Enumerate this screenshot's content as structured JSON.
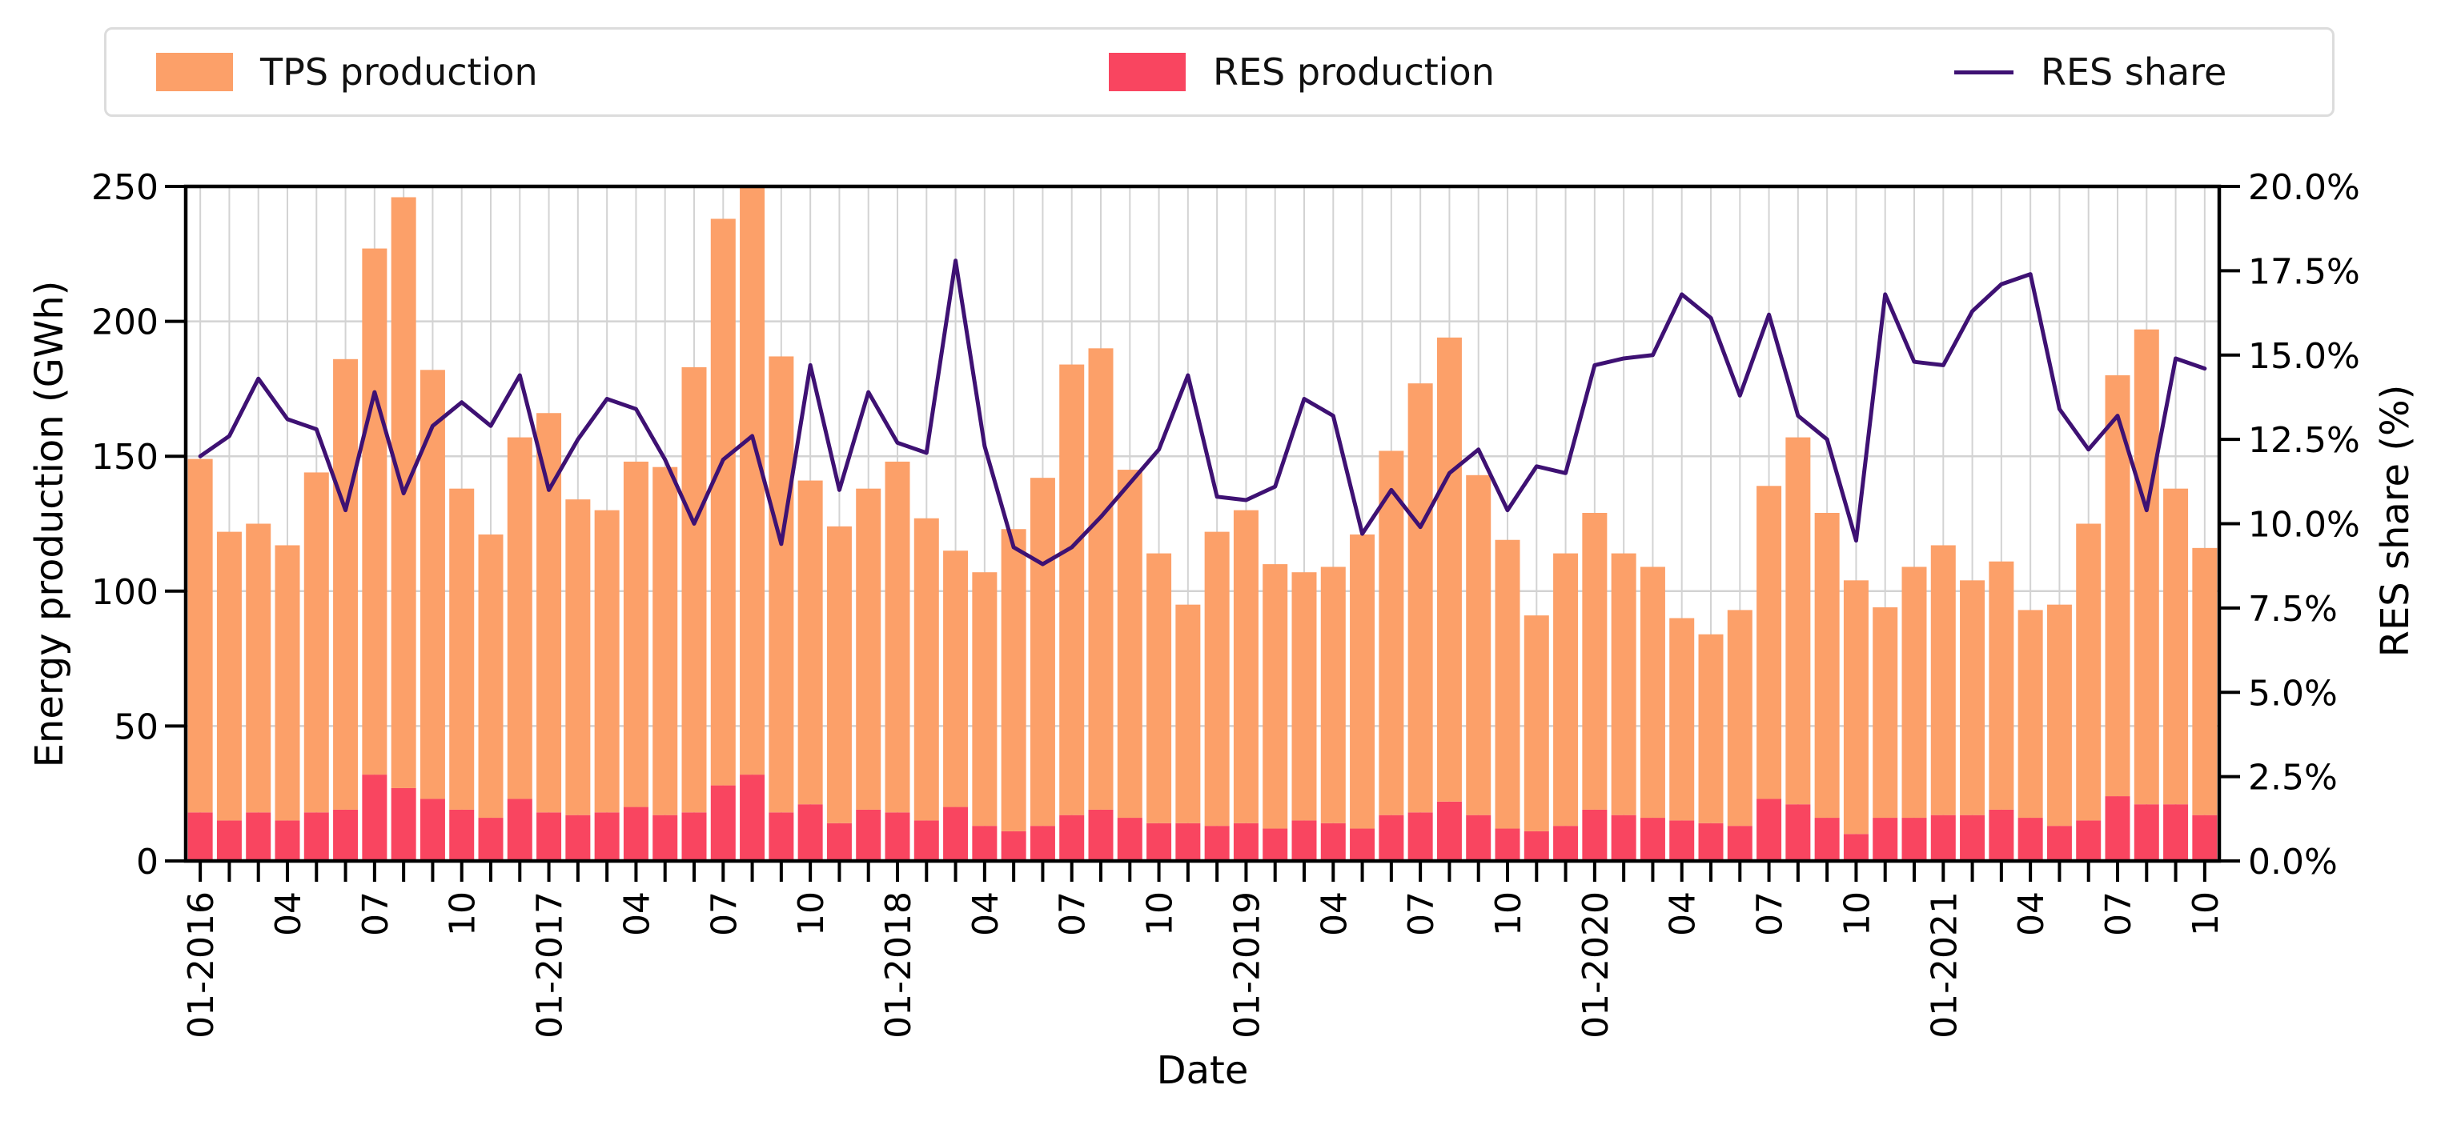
{
  "legend": {
    "tps_label": "TPS production",
    "res_label": "RES production",
    "share_label": "RES share"
  },
  "axes": {
    "x_label": "Date",
    "y_left_label": "Energy production (GWh)",
    "y_right_label": "RES share (%)",
    "y_left_ticks": [
      "0",
      "50",
      "100",
      "150",
      "200",
      "250"
    ],
    "y_left_tick_values": [
      0,
      50,
      100,
      150,
      200,
      250
    ],
    "y_right_ticks": [
      "0.0%",
      "2.5%",
      "5.0%",
      "7.5%",
      "10.0%",
      "12.5%",
      "15.0%",
      "17.5%",
      "20.0%"
    ],
    "y_right_tick_values": [
      0,
      2.5,
      5,
      7.5,
      10,
      12.5,
      15,
      17.5,
      20
    ],
    "y_left_max": 250,
    "y_right_max": 20,
    "grid": "on"
  },
  "colors": {
    "tps": "#FCA069",
    "res": "#F94560",
    "share_line": "#3E1173",
    "grid": "#D3D3D3",
    "axis": "#000000",
    "legend_border": "#DCDCDC"
  },
  "chart_data": {
    "type": "bar",
    "subtype": "stacked-bars-plus-line",
    "title": "",
    "xlabel": "Date",
    "ylabel_left": "Energy production (GWh)",
    "ylabel_right": "RES share (%)",
    "ylim_left": [
      0,
      250
    ],
    "ylim_right": [
      0,
      20
    ],
    "legend_position": "top",
    "x_tick_every": 3,
    "x_tick_indices": [
      0,
      3,
      6,
      9,
      12,
      15,
      18,
      21,
      24,
      27,
      30,
      33,
      36,
      39,
      42,
      45,
      48,
      51,
      54,
      57,
      60,
      63,
      66,
      69
    ],
    "x_tick_labels": [
      "01-2016",
      "04",
      "07",
      "10",
      "01-2017",
      "04",
      "07",
      "10",
      "01-2018",
      "04",
      "07",
      "10",
      "01-2019",
      "04",
      "07",
      "10",
      "01-2020",
      "04",
      "07",
      "10",
      "01-2021",
      "04",
      "07",
      "10"
    ],
    "categories": [
      "01-2016",
      "02-2016",
      "03-2016",
      "04-2016",
      "05-2016",
      "06-2016",
      "07-2016",
      "08-2016",
      "09-2016",
      "10-2016",
      "11-2016",
      "12-2016",
      "01-2017",
      "02-2017",
      "03-2017",
      "04-2017",
      "05-2017",
      "06-2017",
      "07-2017",
      "08-2017",
      "09-2017",
      "10-2017",
      "11-2017",
      "12-2017",
      "01-2018",
      "02-2018",
      "03-2018",
      "04-2018",
      "05-2018",
      "06-2018",
      "07-2018",
      "08-2018",
      "09-2018",
      "10-2018",
      "11-2018",
      "12-2018",
      "01-2019",
      "02-2019",
      "03-2019",
      "04-2019",
      "05-2019",
      "06-2019",
      "07-2019",
      "08-2019",
      "09-2019",
      "10-2019",
      "11-2019",
      "12-2019",
      "01-2020",
      "02-2020",
      "03-2020",
      "04-2020",
      "05-2020",
      "06-2020",
      "07-2020",
      "08-2020",
      "09-2020",
      "10-2020",
      "11-2020",
      "12-2020",
      "01-2021",
      "02-2021",
      "03-2021",
      "04-2021",
      "05-2021",
      "06-2021",
      "07-2021",
      "08-2021",
      "09-2021",
      "10-2021"
    ],
    "series": [
      {
        "name": "TPS production",
        "type": "bar",
        "stack": "production",
        "axis": "left",
        "color": "#FCA069",
        "values": [
          131,
          107,
          107,
          102,
          126,
          167,
          195,
          219,
          159,
          119,
          105,
          134,
          148,
          117,
          112,
          128,
          129,
          165,
          210,
          218,
          169,
          120,
          110,
          119,
          130,
          112,
          95,
          94,
          112,
          129,
          167,
          171,
          129,
          100,
          81,
          109,
          116,
          98,
          92,
          95,
          109,
          135,
          159,
          172,
          126,
          107,
          80,
          101,
          110,
          97,
          93,
          75,
          70,
          80,
          116,
          136,
          113,
          94,
          78,
          93,
          100,
          87,
          92,
          77,
          82,
          110,
          156,
          176,
          117,
          99
        ]
      },
      {
        "name": "RES production",
        "type": "bar",
        "stack": "production",
        "axis": "left",
        "color": "#F94560",
        "values": [
          18,
          15,
          18,
          15,
          18,
          19,
          32,
          27,
          23,
          19,
          16,
          23,
          18,
          17,
          18,
          20,
          17,
          18,
          28,
          32,
          18,
          21,
          14,
          19,
          18,
          15,
          20,
          13,
          11,
          13,
          17,
          19,
          16,
          14,
          14,
          13,
          14,
          12,
          15,
          14,
          12,
          17,
          18,
          22,
          17,
          12,
          11,
          13,
          19,
          17,
          16,
          15,
          14,
          13,
          23,
          21,
          16,
          10,
          16,
          16,
          17,
          17,
          19,
          16,
          13,
          15,
          24,
          21,
          21,
          17
        ]
      },
      {
        "name": "RES share",
        "type": "line",
        "axis": "right",
        "unit": "%",
        "color": "#3E1173",
        "values": [
          12.0,
          12.6,
          14.3,
          13.1,
          12.8,
          10.4,
          13.9,
          10.9,
          12.9,
          13.6,
          12.9,
          14.4,
          11.0,
          12.5,
          13.7,
          13.4,
          11.9,
          10.0,
          11.9,
          12.6,
          9.4,
          14.7,
          11.0,
          13.9,
          12.4,
          12.1,
          17.8,
          12.3,
          9.3,
          8.8,
          9.3,
          10.2,
          11.2,
          12.2,
          14.4,
          10.8,
          10.7,
          11.1,
          13.7,
          13.2,
          9.7,
          11.0,
          9.9,
          11.5,
          12.2,
          10.4,
          11.7,
          11.5,
          14.7,
          14.9,
          15.0,
          16.8,
          16.1,
          13.8,
          16.2,
          13.2,
          12.5,
          9.5,
          16.8,
          14.8,
          14.7,
          16.3,
          17.1,
          17.4,
          13.4,
          12.2,
          13.2,
          10.4,
          14.9,
          14.6
        ]
      }
    ]
  }
}
